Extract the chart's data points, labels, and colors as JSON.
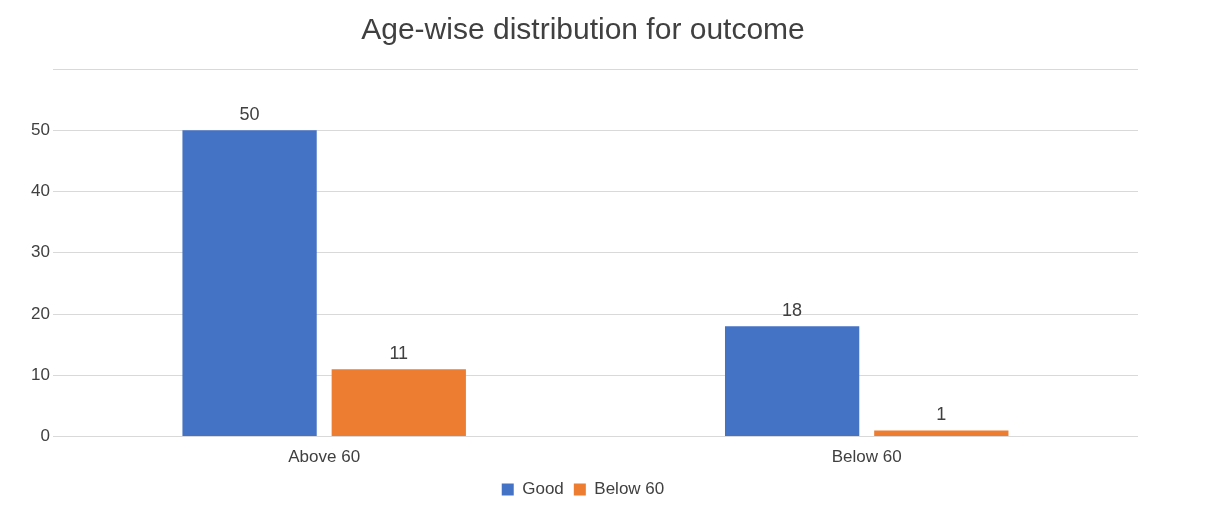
{
  "chart_data": {
    "type": "bar",
    "title": "Age-wise distribution for outcome",
    "categories": [
      "Above 60",
      "Below 60"
    ],
    "series": [
      {
        "name": "Good",
        "color": "#4472c4",
        "values": [
          50,
          18
        ]
      },
      {
        "name": "Below 60",
        "color": "#ed7d31",
        "values": [
          11,
          1
        ]
      }
    ],
    "ylim": [
      0,
      60
    ],
    "yticks": [
      0,
      10,
      20,
      30,
      40,
      50,
      {
        "value": 60,
        "label": null
      }
    ],
    "grid": "y",
    "legend": "bottom",
    "data_labels": true
  }
}
